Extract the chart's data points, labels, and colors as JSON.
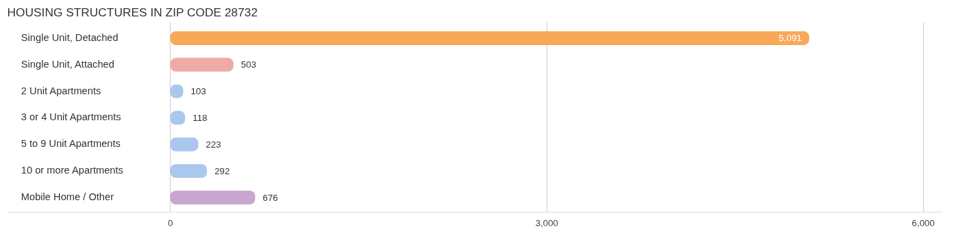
{
  "chart_data": {
    "type": "bar",
    "orientation": "horizontal",
    "title": "HOUSING STRUCTURES IN ZIP CODE 28732",
    "categories": [
      "Single Unit, Detached",
      "Single Unit, Attached",
      "2 Unit Apartments",
      "3 or 4 Unit Apartments",
      "5 to 9 Unit Apartments",
      "10 or more Apartments",
      "Mobile Home / Other"
    ],
    "values": [
      5091,
      503,
      103,
      118,
      223,
      292,
      676
    ],
    "colors": [
      "#f9a85a",
      "#f0aaa6",
      "#a9c8ec",
      "#a9c8ec",
      "#a9c8ec",
      "#a9c8ec",
      "#c9a6cf"
    ],
    "value_labels": [
      "5,091",
      "503",
      "103",
      "118",
      "223",
      "292",
      "676"
    ],
    "xlim": [
      -1300,
      6150
    ],
    "xticks": [
      0,
      {
        "value": 3000,
        "label": "3,000"
      },
      {
        "value": 6000,
        "label": "6,000"
      }
    ],
    "grid": "x"
  }
}
